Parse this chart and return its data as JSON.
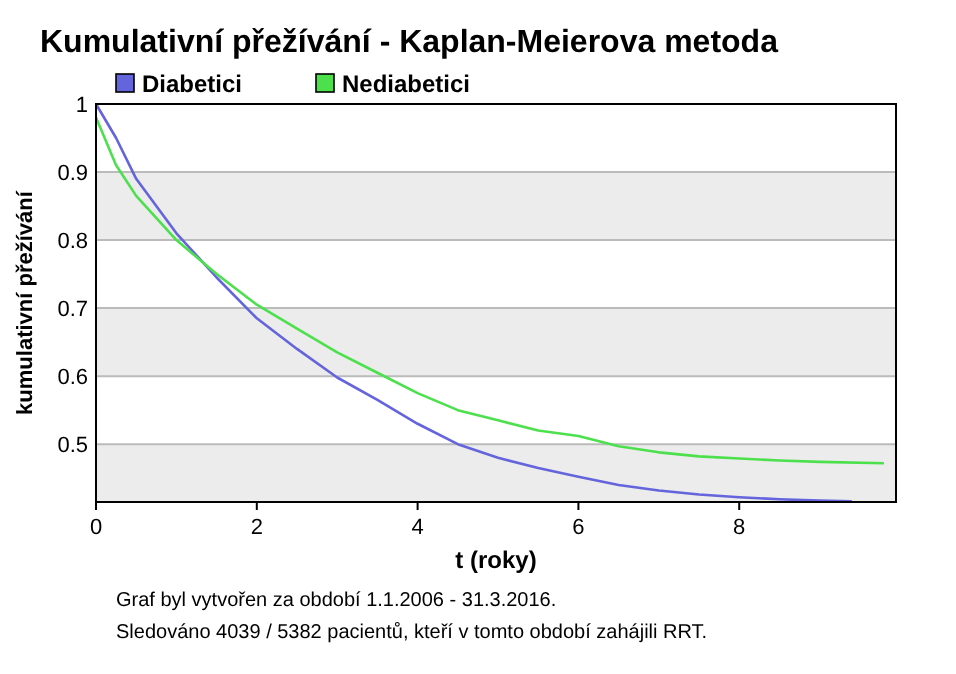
{
  "chart_data": {
    "type": "line",
    "title": "Kumulativní přežívání - Kaplan-Meierova metoda",
    "xlabel": "t (roky)",
    "ylabel": "kumulativní přežívání",
    "annotations": [
      "Graf byl vytvořen za období 1.1.2006 - 31.3.2016.",
      "Sledováno 4039 / 5382 pacientů, kteří v tomto období zahájili RRT."
    ],
    "x": [
      0,
      0.25,
      0.5,
      1,
      1.5,
      2,
      2.5,
      3,
      3.5,
      4,
      4.5,
      5,
      5.5,
      6,
      6.5,
      7,
      7.5,
      8,
      8.5,
      9,
      9.4
    ],
    "series": [
      {
        "name": "Diabetici",
        "color": "#6464dc",
        "values": [
          1.0,
          0.95,
          0.89,
          0.81,
          0.745,
          0.685,
          0.64,
          0.598,
          0.565,
          0.53,
          0.5,
          0.48,
          0.465,
          0.452,
          0.44,
          0.432,
          0.426,
          0.422,
          0.419,
          0.417,
          0.416
        ]
      },
      {
        "name": "Nediabetici",
        "color": "#4ce04c",
        "x": [
          0,
          0.25,
          0.5,
          1,
          1.5,
          2,
          2.5,
          3,
          3.5,
          4,
          4.5,
          5,
          5.5,
          6,
          6.5,
          7,
          7.5,
          8,
          8.5,
          9,
          9.8
        ],
        "values": [
          0.98,
          0.91,
          0.865,
          0.8,
          0.75,
          0.705,
          0.67,
          0.635,
          0.605,
          0.575,
          0.55,
          0.535,
          0.52,
          0.512,
          0.497,
          0.488,
          0.482,
          0.479,
          0.476,
          0.474,
          0.472
        ]
      }
    ],
    "xlim": [
      0,
      9.95
    ],
    "ylim": [
      0.415,
      1
    ],
    "xticks": [
      0,
      2,
      4,
      6,
      8
    ],
    "yticks": [
      0.5,
      0.6,
      0.7,
      0.8,
      0.9,
      1
    ],
    "grid": "y",
    "legend": "top left"
  }
}
